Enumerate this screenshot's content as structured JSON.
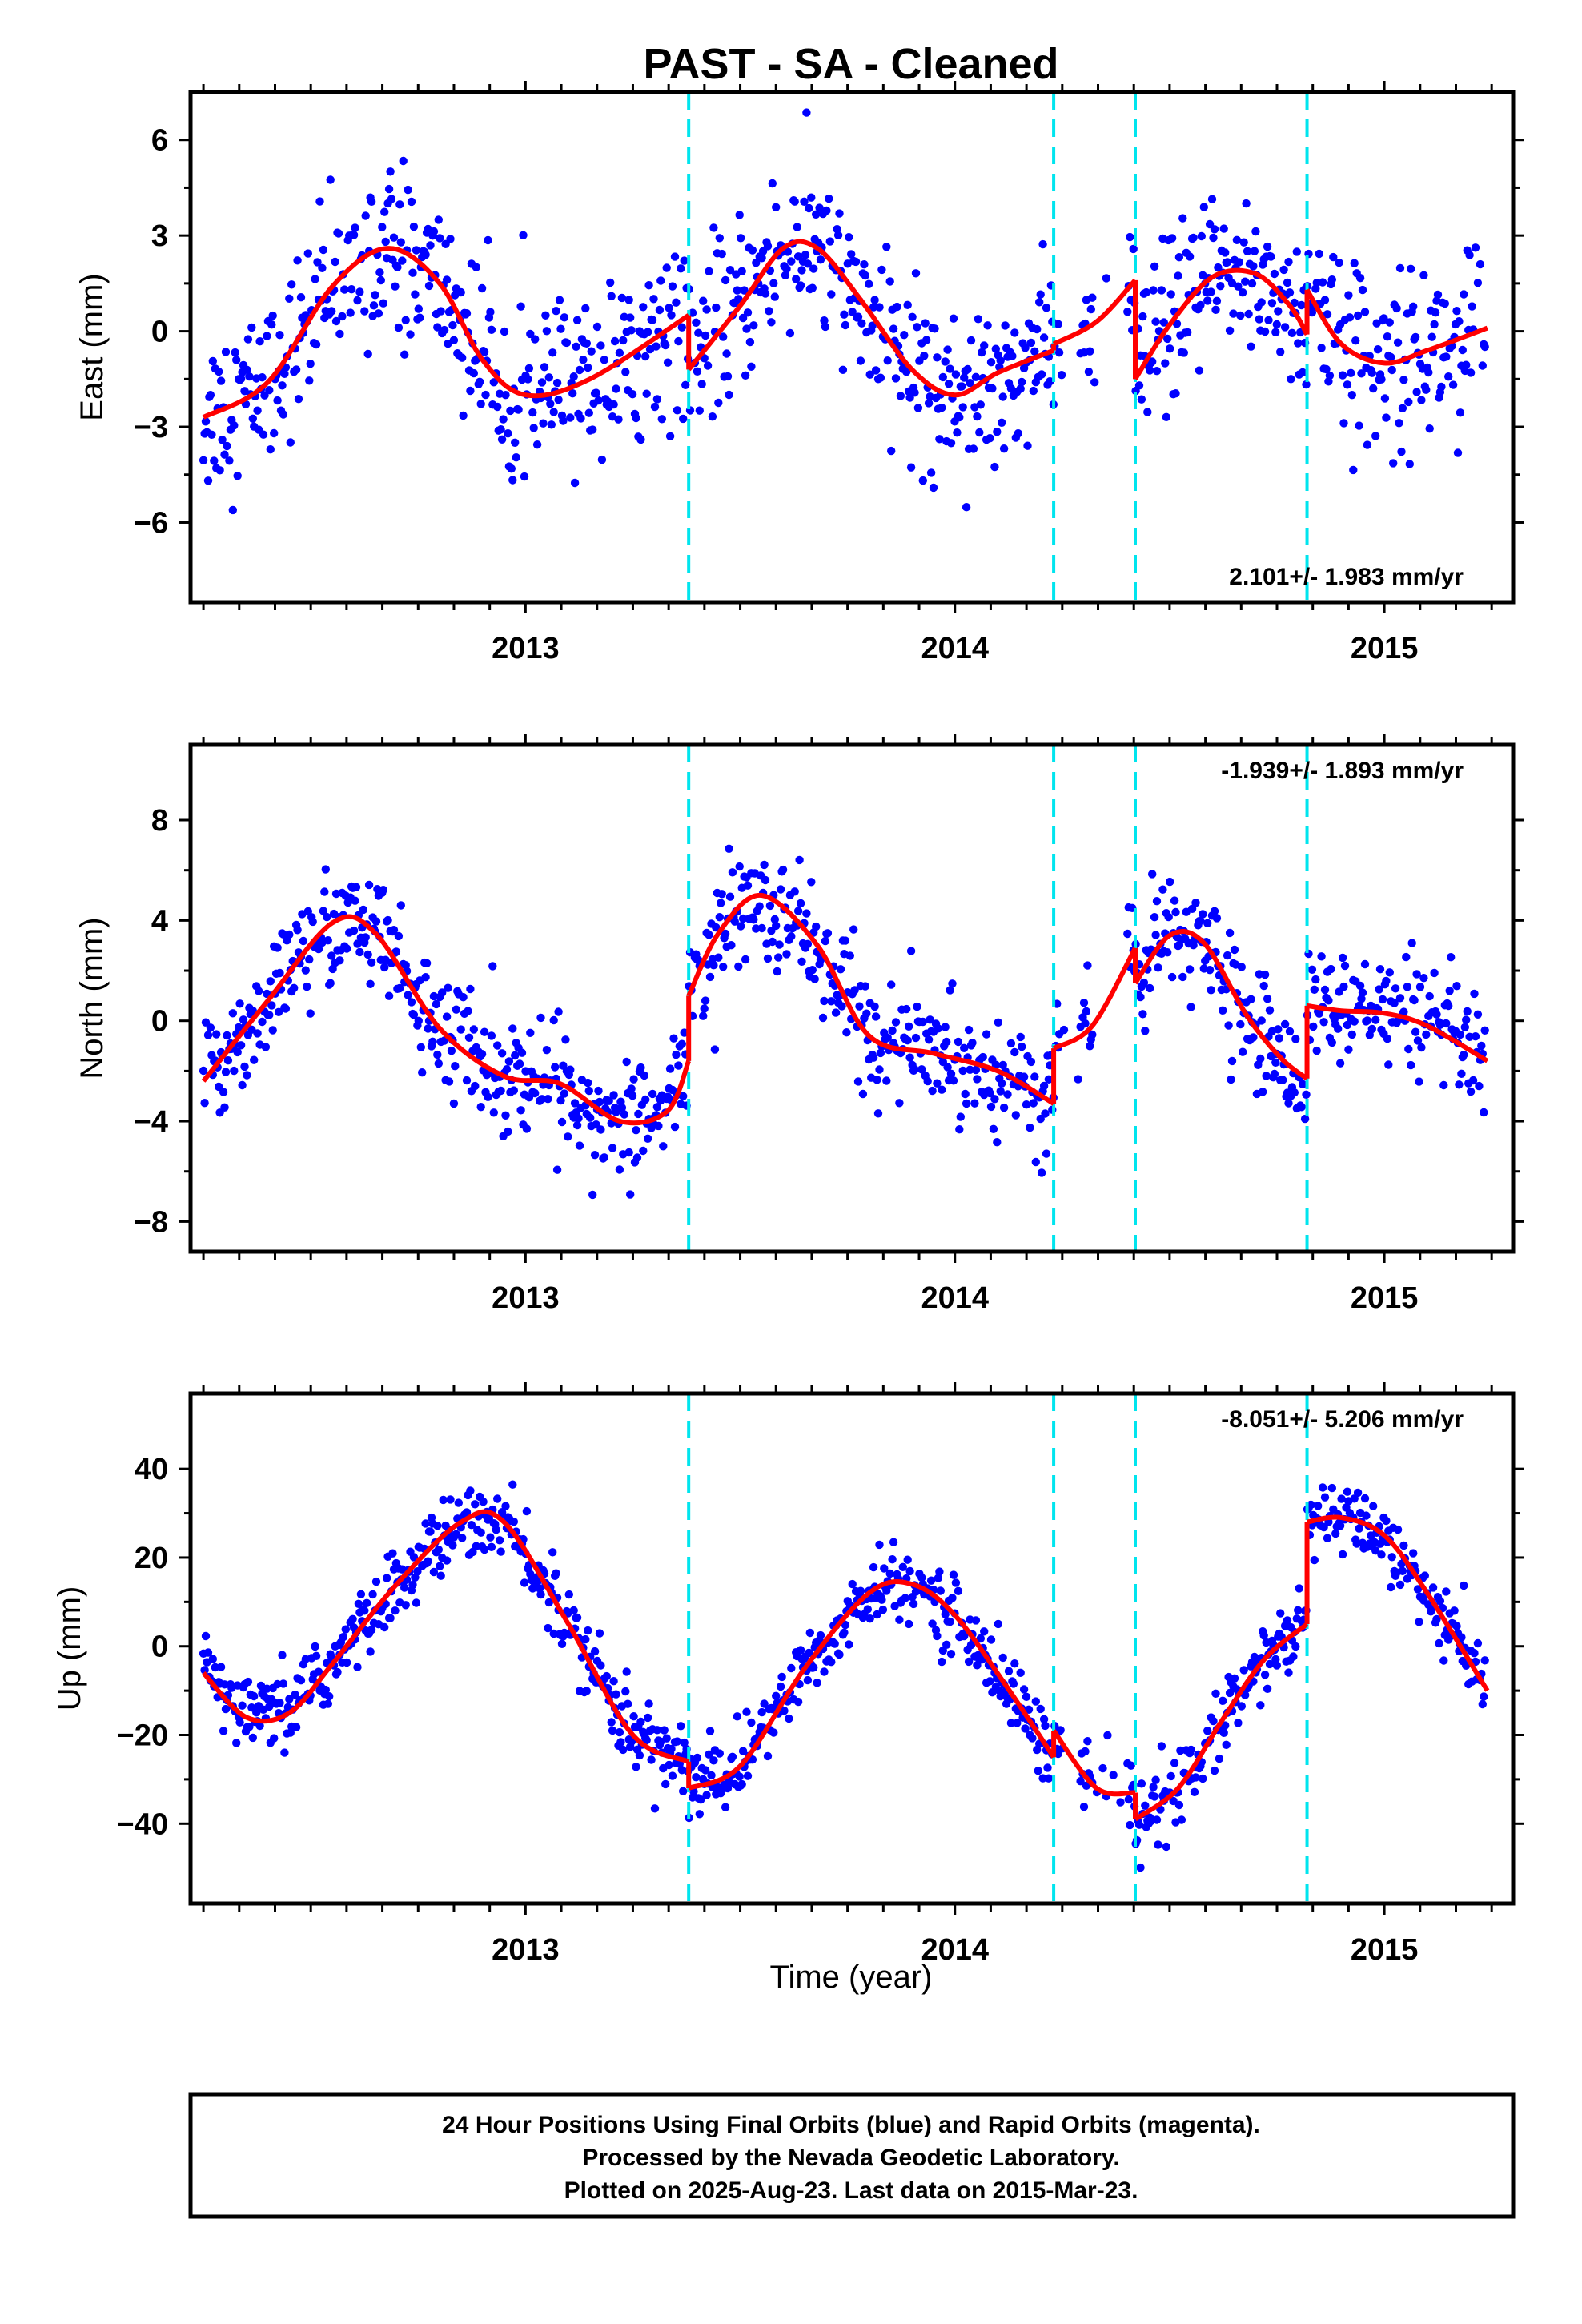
{
  "title": "PAST  - SA - Cleaned",
  "xlabel": "Time (year)",
  "colors": {
    "points": "#0000ff",
    "model": "#ff0000",
    "breaks": "#00e5ee",
    "frame": "#000000"
  },
  "footer": {
    "line1": "24 Hour Positions Using Final Orbits (blue) and Rapid Orbits (magenta).",
    "line2": "Processed by the Nevada Geodetic Laboratory.",
    "line3": "Plotted on 2025-Aug-23. Last data on 2015-Mar-23."
  },
  "chart_data": [
    {
      "type": "scatter",
      "ylabel": "East (mm)",
      "rate": "2.101+/- 1.983 mm/yr",
      "rate_position": "bottom-right",
      "xlim": [
        2012.22,
        2015.3
      ],
      "ylim": [
        -8.5,
        7.5
      ],
      "xticks": [
        2013,
        2014,
        2015
      ],
      "xtick_labels": [
        "2013",
        "2014",
        "2015"
      ],
      "yticks": [
        -6,
        -3,
        0,
        3,
        6
      ],
      "ytick_labels": [
        "−6",
        "−3",
        "0",
        "3",
        "6"
      ],
      "breaks": [
        2013.38,
        2014.23,
        2014.42,
        2014.82
      ],
      "model": [
        {
          "x": [
            2012.25,
            2012.4,
            2012.55,
            2012.68,
            2012.8,
            2012.9,
            2013.0,
            2013.15,
            2013.38
          ],
          "y": [
            -2.7,
            -1.6,
            1.4,
            2.6,
            1.5,
            -0.9,
            -2.0,
            -1.5,
            0.5
          ]
        },
        {
          "x": [
            2013.38,
            2013.5,
            2013.6,
            2013.68,
            2013.78,
            2013.9,
            2014.0,
            2014.1,
            2014.23
          ],
          "y": [
            -1.2,
            0.8,
            2.6,
            2.6,
            1.0,
            -1.2,
            -2.0,
            -1.3,
            -0.6
          ]
        },
        {
          "x": [
            2014.23,
            2014.33,
            2014.42
          ],
          "y": [
            -0.4,
            0.3,
            1.6
          ]
        },
        {
          "x": [
            2014.42,
            2014.5,
            2014.6,
            2014.7,
            2014.78,
            2014.82
          ],
          "y": [
            -1.5,
            0.2,
            1.7,
            1.8,
            0.8,
            -0.1
          ]
        },
        {
          "x": [
            2014.82,
            2014.9,
            2015.0,
            2015.1,
            2015.24
          ],
          "y": [
            1.3,
            -0.4,
            -1.0,
            -0.6,
            0.1
          ]
        }
      ]
    },
    {
      "type": "scatter",
      "ylabel": "North (mm)",
      "rate": "-1.939+/- 1.893 mm/yr",
      "rate_position": "top-right",
      "xlim": [
        2012.22,
        2015.3
      ],
      "ylim": [
        -9.2,
        11
      ],
      "xticks": [
        2013,
        2014,
        2015
      ],
      "xtick_labels": [
        "2013",
        "2014",
        "2015"
      ],
      "yticks": [
        -8,
        -4,
        0,
        4,
        8
      ],
      "ytick_labels": [
        "−8",
        "−4",
        "0",
        "4",
        "8"
      ],
      "breaks": [
        2013.38,
        2014.23,
        2014.42,
        2014.82
      ],
      "model": [
        {
          "x": [
            2012.25,
            2012.4,
            2012.55,
            2012.65,
            2012.8,
            2012.95,
            2013.08,
            2013.22,
            2013.33,
            2013.38
          ],
          "y": [
            -2.4,
            0.8,
            3.9,
            3.5,
            -0.3,
            -2.2,
            -2.5,
            -4.0,
            -3.6,
            -1.6
          ]
        },
        {
          "x": [
            2013.38,
            2013.45,
            2013.55,
            2013.68,
            2013.8,
            2013.95,
            2014.1,
            2014.23
          ],
          "y": [
            1.0,
            3.5,
            5.0,
            3.0,
            -0.6,
            -1.3,
            -2.0,
            -3.3
          ]
        },
        {
          "x": [
            2014.23,
            2014.32,
            2014.42
          ],
          "y": [
            -1.1,
            -0.2,
            2.9
          ]
        },
        {
          "x": [
            2014.42,
            2014.5,
            2014.58,
            2014.68,
            2014.76,
            2014.82
          ],
          "y": [
            1.5,
            3.4,
            3.1,
            0.2,
            -1.5,
            -2.3
          ]
        },
        {
          "x": [
            2014.82,
            2014.9,
            2015.0,
            2015.1,
            2015.24
          ],
          "y": [
            0.6,
            0.4,
            0.3,
            -0.2,
            -1.6
          ]
        }
      ]
    },
    {
      "type": "scatter",
      "ylabel": "Up (mm)",
      "rate": "-8.051+/- 5.206 mm/yr",
      "rate_position": "top-right",
      "xlim": [
        2012.22,
        2015.3
      ],
      "ylim": [
        -58,
        57
      ],
      "xticks": [
        2013,
        2014,
        2015
      ],
      "xtick_labels": [
        "2013",
        "2014",
        "2015"
      ],
      "yticks": [
        -40,
        -20,
        0,
        20,
        40
      ],
      "ytick_labels": [
        "−40",
        "−20",
        "0",
        "20",
        "40"
      ],
      "breaks": [
        2013.38,
        2014.23,
        2014.42,
        2014.82
      ],
      "model": [
        {
          "x": [
            2012.25,
            2012.35,
            2012.45,
            2012.55,
            2012.7,
            2012.85,
            2012.95,
            2013.1,
            2013.25,
            2013.38
          ],
          "y": [
            -6,
            -16,
            -15,
            -4,
            14,
            28,
            28,
            5,
            -20,
            -26
          ]
        },
        {
          "x": [
            2013.38,
            2013.5,
            2013.65,
            2013.8,
            2013.9,
            2014.0,
            2014.12,
            2014.23
          ],
          "y": [
            -32,
            -27,
            -5,
            12,
            14,
            7,
            -9,
            -25
          ]
        },
        {
          "x": [
            2014.23,
            2014.33,
            2014.42
          ],
          "y": [
            -19,
            -32,
            -33
          ]
        },
        {
          "x": [
            2014.42,
            2014.52,
            2014.62,
            2014.72,
            2014.82
          ],
          "y": [
            -39,
            -32,
            -17,
            -3,
            5
          ]
        },
        {
          "x": [
            2014.82,
            2014.9,
            2015.0,
            2015.1,
            2015.24
          ],
          "y": [
            28,
            29,
            25,
            12,
            -10
          ]
        }
      ]
    }
  ]
}
